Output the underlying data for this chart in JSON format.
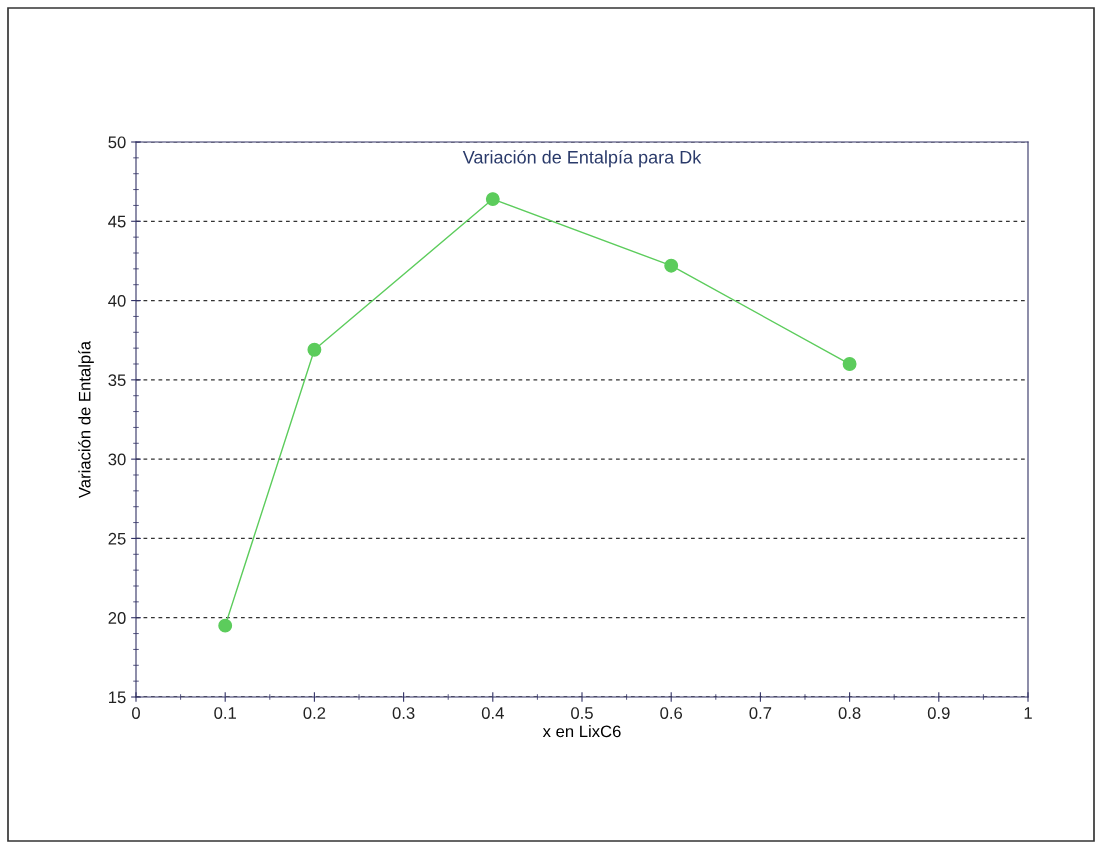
{
  "chart_data": {
    "type": "line",
    "title": "Variación de Entalpía para Dk",
    "xlabel": "x en LixC6",
    "ylabel": "Variación de Entalpía",
    "x": [
      0.1,
      0.2,
      0.4,
      0.6,
      0.8
    ],
    "series": [
      {
        "color": "#5ccc5c",
        "values": [
          19.5,
          36.9,
          46.4,
          42.2,
          36.0
        ]
      }
    ],
    "xlim": [
      0,
      1
    ],
    "xticks": [
      0,
      0.1,
      0.2,
      0.3,
      0.4,
      0.5,
      0.6,
      0.7,
      0.8,
      0.9,
      1
    ],
    "ylim": [
      15,
      50
    ],
    "yticks": [
      15,
      20,
      25,
      30,
      35,
      40,
      45,
      50
    ],
    "grid": "y",
    "marker": "circle",
    "line_style": "solid",
    "legend": false
  }
}
